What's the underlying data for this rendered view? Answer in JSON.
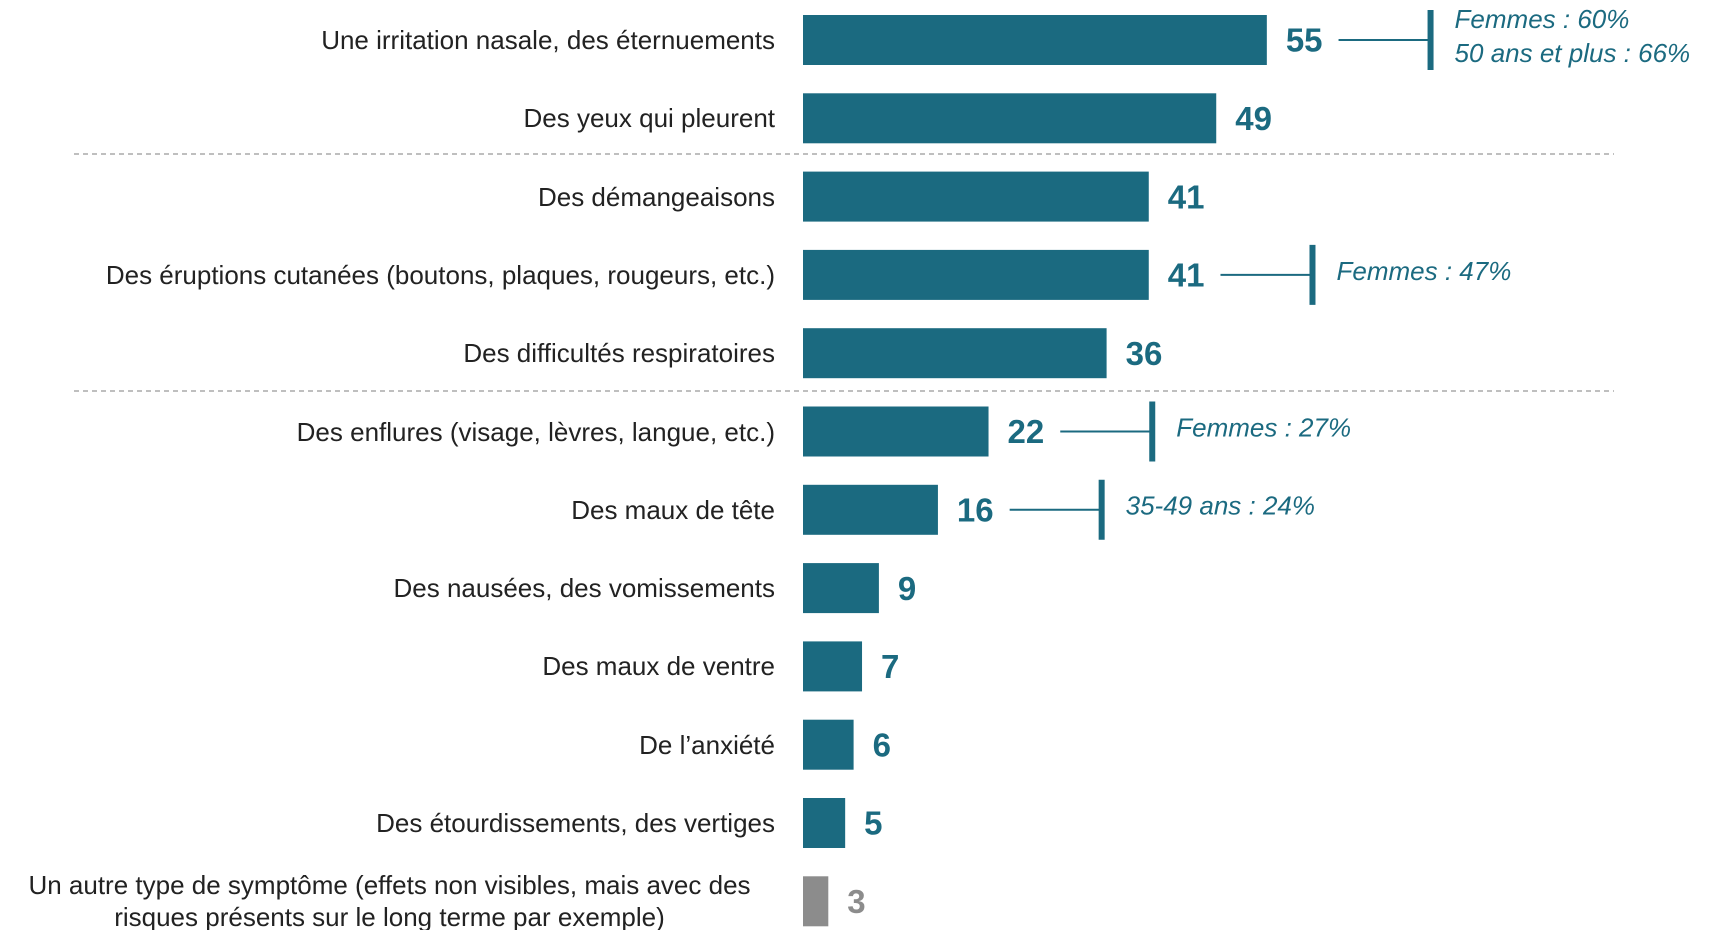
{
  "chart_data": {
    "type": "bar",
    "orientation": "horizontal",
    "categories": [
      "Une irritation nasale, des éternuements",
      "Des yeux qui pleurent",
      "Des démangeaisons",
      "Des éruptions cutanées (boutons, plaques, rougeurs, etc.)",
      "Des difficultés respiratoires",
      "Des enflures (visage, lèvres, langue, etc.)",
      "Des maux de tête",
      "Des nausées, des vomissements",
      "Des maux de ventre",
      "De l’anxiété",
      "Des étourdissements, des vertiges",
      "Un autre type de symptôme (effets non visibles, mais avec des risques présents sur le long terme par exemple)"
    ],
    "values": [
      55,
      49,
      41,
      41,
      36,
      22,
      16,
      9,
      7,
      6,
      5,
      3
    ],
    "colors": [
      "#1b6a80",
      "#1b6a80",
      "#1b6a80",
      "#1b6a80",
      "#1b6a80",
      "#1b6a80",
      "#1b6a80",
      "#1b6a80",
      "#1b6a80",
      "#1b6a80",
      "#1b6a80",
      "#8c8c8c"
    ],
    "annotations": [
      [
        "Femmes : 60%",
        "50 ans et plus : 66%"
      ],
      null,
      null,
      [
        "Femmes : 47%"
      ],
      null,
      [
        "Femmes : 27%"
      ],
      [
        "35-49 ans : 24%"
      ],
      null,
      null,
      null,
      null,
      null
    ],
    "annotation_color": "#1b6a80",
    "xlim": [
      0,
      60
    ]
  }
}
